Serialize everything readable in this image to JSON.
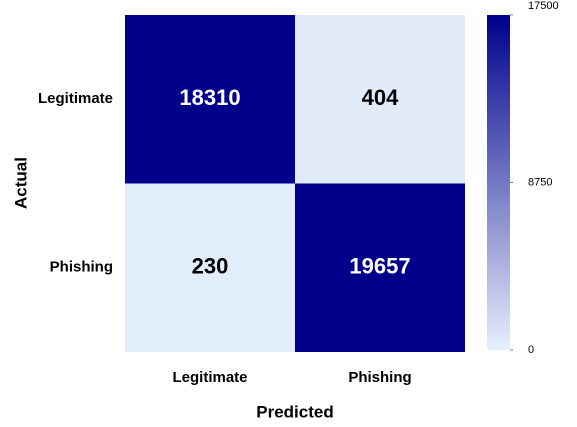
{
  "chart_data": {
    "type": "heatmap",
    "x_categories": [
      "Legitimate",
      "Phishing"
    ],
    "y_categories": [
      "Legitimate",
      "Phishing"
    ],
    "values": [
      [
        18310,
        404
      ],
      [
        230,
        19657
      ]
    ],
    "xlabel": "Predicted",
    "ylabel": "Actual",
    "clim": [
      0,
      17500
    ],
    "cticks": [
      0,
      8750,
      17500
    ],
    "colors": [
      "#e5f0fc",
      "#00008b"
    ]
  }
}
